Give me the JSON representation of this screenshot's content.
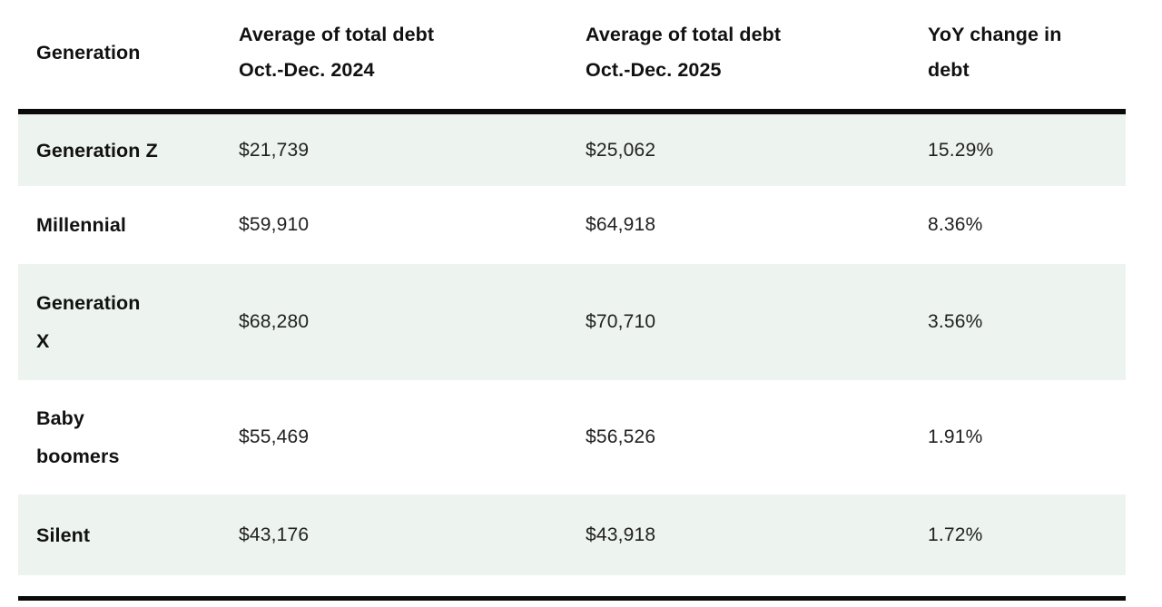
{
  "table": {
    "header": {
      "generation": "Generation",
      "debt_2024": "Average of total debt\nOct.-Dec. 2024",
      "debt_2025": "Average of total debt\nOct.-Dec. 2025",
      "yoy": "YoY change in\ndebt"
    },
    "rows": [
      {
        "generation": "Generation Z",
        "debt_2024": "$21,739",
        "debt_2025": "$25,062",
        "yoy": "15.29%"
      },
      {
        "generation": "Millennial",
        "debt_2024": "$59,910",
        "debt_2025": "$64,918",
        "yoy": "8.36%"
      },
      {
        "generation": "Generation\nX",
        "debt_2024": "$68,280",
        "debt_2025": "$70,710",
        "yoy": "3.56%"
      },
      {
        "generation": "Baby\nboomers",
        "debt_2024": "$55,469",
        "debt_2025": "$56,526",
        "yoy": "1.91%"
      },
      {
        "generation": "Silent",
        "debt_2024": "$43,176",
        "debt_2025": "$43,918",
        "yoy": "1.72%"
      }
    ]
  },
  "chart_data": {
    "type": "table",
    "columns": [
      "Generation",
      "Average of total debt Oct.-Dec. 2024",
      "Average of total debt Oct.-Dec. 2025",
      "YoY change in debt"
    ],
    "rows": [
      [
        "Generation Z",
        21739,
        25062,
        "15.29%"
      ],
      [
        "Millennial",
        59910,
        64918,
        "8.36%"
      ],
      [
        "Generation X",
        68280,
        70710,
        "3.56%"
      ],
      [
        "Baby boomers",
        55469,
        56526,
        "1.91%"
      ],
      [
        "Silent",
        43176,
        43918,
        "1.72%"
      ]
    ]
  },
  "colors": {
    "row_shade": "#edf3ef",
    "rule": "#0a0a0a",
    "heading_text": "#111111",
    "value_text": "#212121",
    "background": "#ffffff"
  }
}
